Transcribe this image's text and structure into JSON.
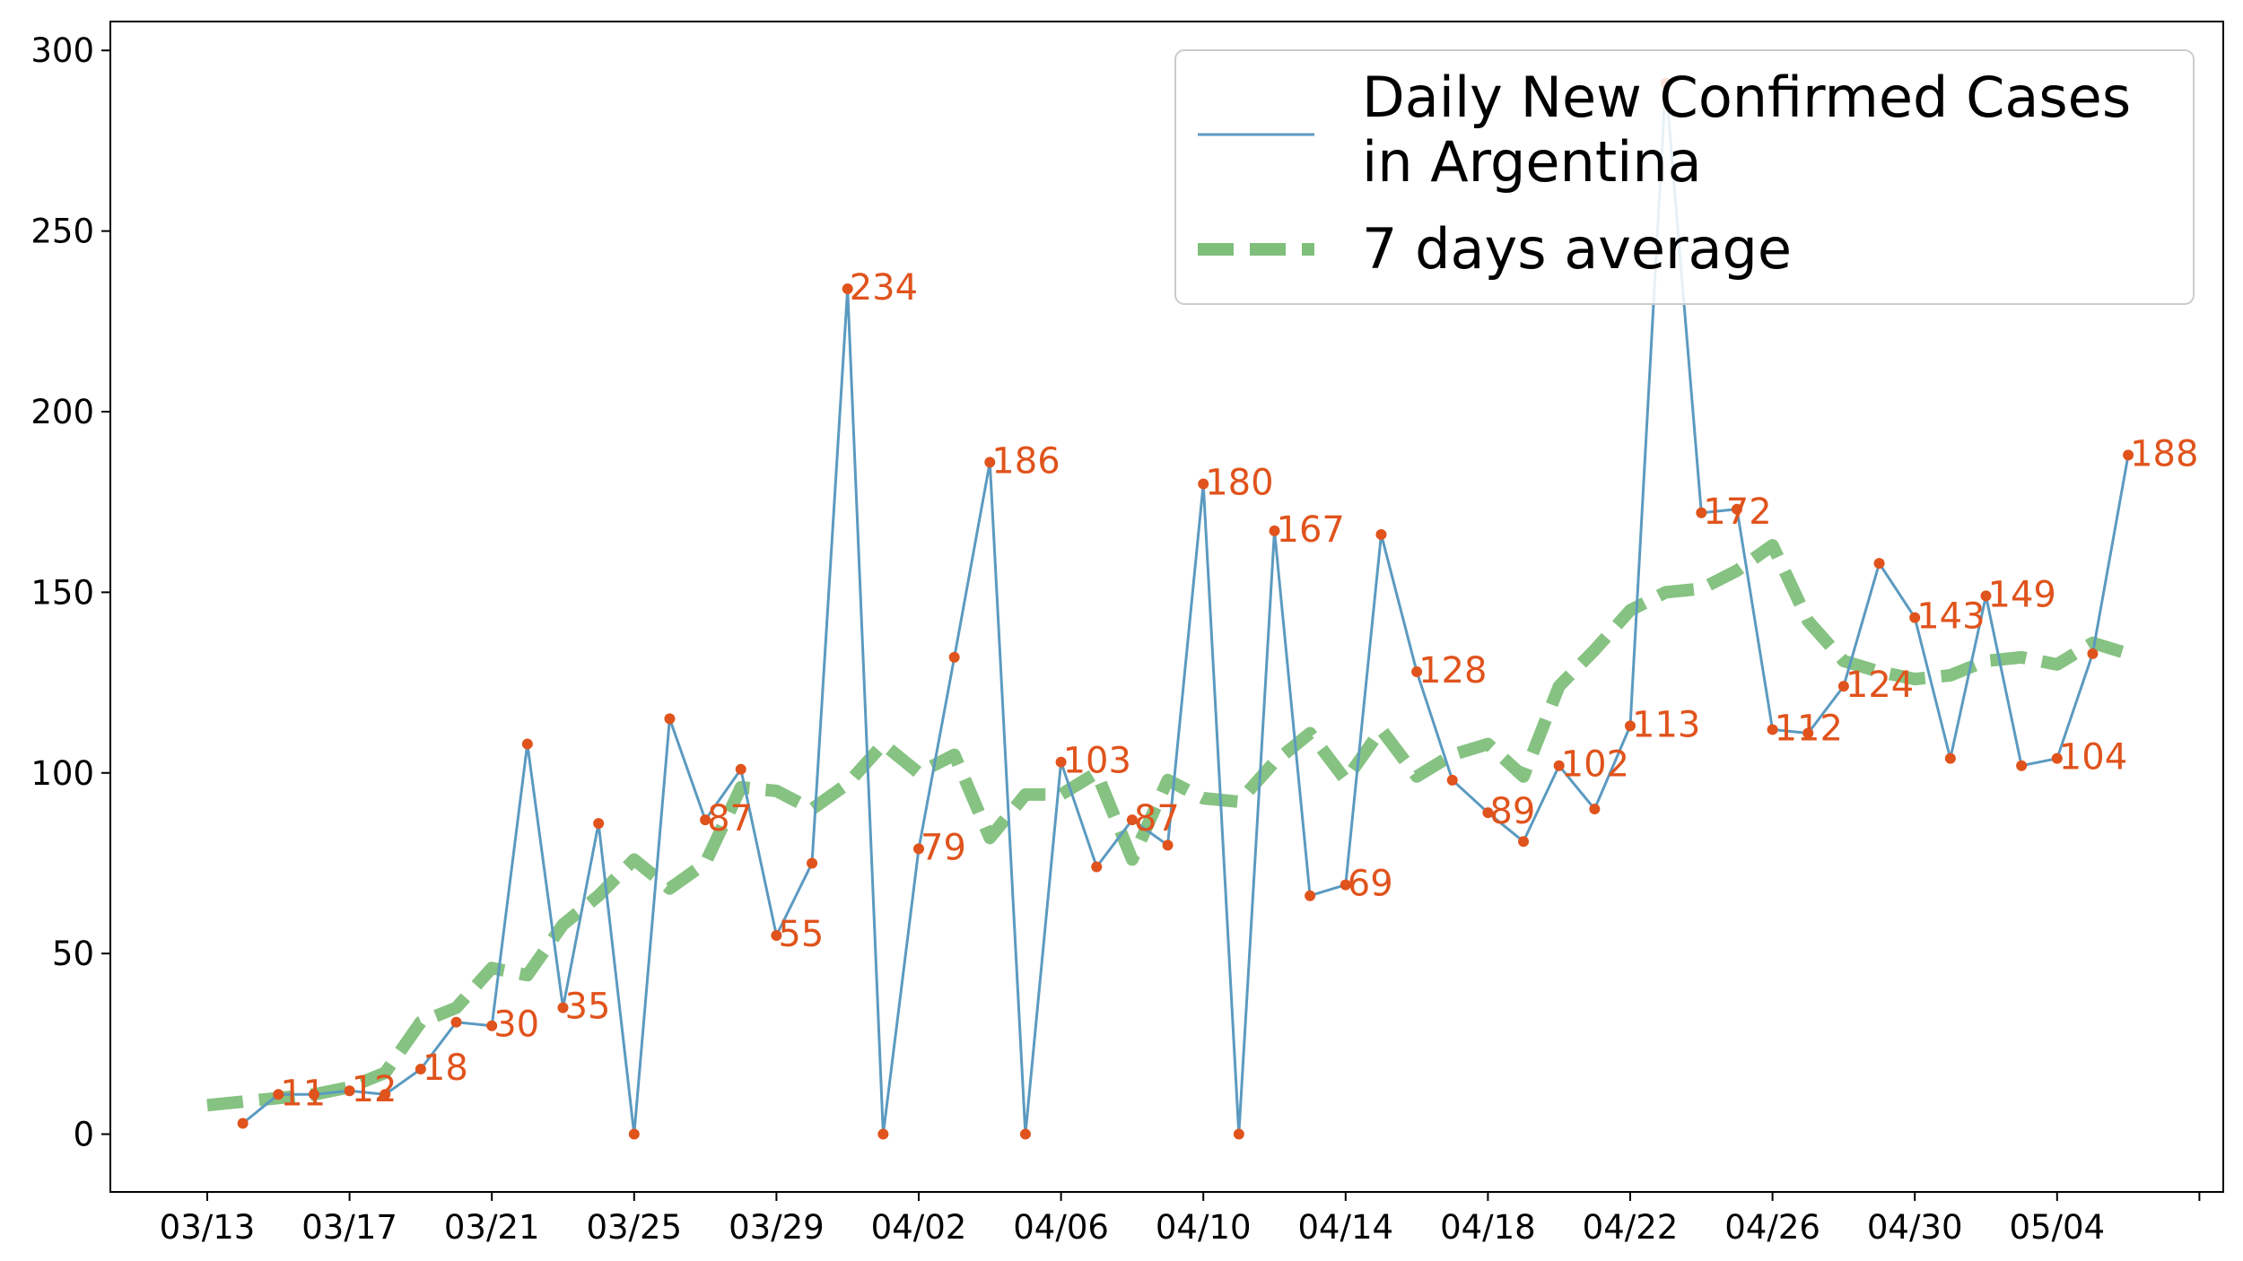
{
  "chart_data": {
    "type": "line",
    "title": "",
    "xlabel": "",
    "ylabel": "",
    "x_start": "2020-03-13",
    "x_tick_labels": [
      "03/13",
      "03/17",
      "03/21",
      "03/25",
      "03/29",
      "04/02",
      "04/06",
      "04/10",
      "04/14",
      "04/18",
      "04/22",
      "04/26",
      "04/30",
      "05/04"
    ],
    "ylim": [
      -16,
      308
    ],
    "y_ticks": [
      0,
      50,
      100,
      150,
      200,
      250,
      300
    ],
    "grid": false,
    "legend_position": "top-right",
    "series": [
      {
        "name": "Daily New Confirmed Cases\n in Argentina",
        "color": "#5b9ac0",
        "style": "solid-line-with-markers",
        "marker_color": "#e0531c",
        "x": [
          "03/14",
          "03/15",
          "03/16",
          "03/17",
          "03/18",
          "03/19",
          "03/20",
          "03/21",
          "03/22",
          "03/23",
          "03/24",
          "03/25",
          "03/26",
          "03/27",
          "03/28",
          "03/29",
          "03/30",
          "03/31",
          "04/01",
          "04/02",
          "04/03",
          "04/04",
          "04/05",
          "04/06",
          "04/07",
          "04/08",
          "04/09",
          "04/10",
          "04/11",
          "04/12",
          "04/13",
          "04/14",
          "04/15",
          "04/16",
          "04/17",
          "04/18",
          "04/19",
          "04/20",
          "04/21",
          "04/22",
          "04/23",
          "04/24",
          "04/25",
          "04/26",
          "04/27",
          "04/28",
          "04/29",
          "04/30",
          "05/01",
          "05/02",
          "05/03",
          "05/04",
          "05/05",
          "05/06"
        ],
        "values": [
          3,
          11,
          11,
          12,
          11,
          18,
          31,
          30,
          108,
          35,
          86,
          0,
          115,
          87,
          101,
          55,
          75,
          234,
          0,
          79,
          132,
          186,
          0,
          103,
          74,
          87,
          80,
          180,
          0,
          167,
          66,
          69,
          166,
          128,
          98,
          89,
          81,
          102,
          90,
          113,
          291,
          172,
          173,
          112,
          111,
          124,
          158,
          143,
          104,
          149,
          102,
          104,
          133,
          188
        ]
      },
      {
        "name": "7 days average",
        "color": "#7fbf7b",
        "style": "dashed",
        "x": [
          "03/13",
          "03/14",
          "03/15",
          "03/16",
          "03/17",
          "03/18",
          "03/19",
          "03/20",
          "03/21",
          "03/22",
          "03/23",
          "03/24",
          "03/25",
          "03/26",
          "03/27",
          "03/28",
          "03/29",
          "03/30",
          "03/31",
          "04/01",
          "04/02",
          "04/03",
          "04/04",
          "04/05",
          "04/06",
          "04/07",
          "04/08",
          "04/09",
          "04/10",
          "04/11",
          "04/12",
          "04/13",
          "04/14",
          "04/15",
          "04/16",
          "04/17",
          "04/18",
          "04/19",
          "04/20",
          "04/21",
          "04/22",
          "04/23",
          "04/24",
          "04/25",
          "04/26",
          "04/27",
          "04/28",
          "04/29",
          "04/30",
          "05/01",
          "05/02",
          "05/03",
          "05/04",
          "05/05",
          "05/06"
        ],
        "values": [
          8,
          9,
          10,
          11,
          13,
          17,
          31,
          35,
          46,
          44,
          58,
          66,
          76,
          68,
          75,
          96,
          95,
          90,
          97,
          108,
          100,
          105,
          82,
          94,
          94,
          100,
          76,
          98,
          93,
          92,
          103,
          111,
          98,
          112,
          99,
          105,
          108,
          99,
          124,
          134,
          145,
          150,
          151,
          156,
          163,
          142,
          131,
          128,
          126,
          127,
          131,
          132,
          130,
          136,
          133
        ]
      }
    ],
    "data_labels": [
      {
        "x": "03/15",
        "text": "11",
        "value": 11
      },
      {
        "x": "03/17",
        "text": "12",
        "value": 12
      },
      {
        "x": "03/19",
        "text": "18",
        "value": 18
      },
      {
        "x": "03/21",
        "text": "30",
        "value": 30
      },
      {
        "x": "03/23",
        "text": "35",
        "value": 35
      },
      {
        "x": "03/27",
        "text": "87",
        "value": 87
      },
      {
        "x": "03/29",
        "text": "55",
        "value": 55
      },
      {
        "x": "03/31",
        "text": "234",
        "value": 234
      },
      {
        "x": "04/02",
        "text": "79",
        "value": 79
      },
      {
        "x": "04/04",
        "text": "186",
        "value": 186
      },
      {
        "x": "04/06",
        "text": "103",
        "value": 103
      },
      {
        "x": "04/08",
        "text": "87",
        "value": 87
      },
      {
        "x": "04/10",
        "text": "180",
        "value": 180
      },
      {
        "x": "04/12",
        "text": "167",
        "value": 167
      },
      {
        "x": "04/14",
        "text": "69",
        "value": 69
      },
      {
        "x": "04/16",
        "text": "128",
        "value": 128
      },
      {
        "x": "04/18",
        "text": "89",
        "value": 89
      },
      {
        "x": "04/20",
        "text": "102",
        "value": 102
      },
      {
        "x": "04/22",
        "text": "113",
        "value": 113
      },
      {
        "x": "04/24",
        "text": "172",
        "value": 172
      },
      {
        "x": "04/26",
        "text": "112",
        "value": 112
      },
      {
        "x": "04/28",
        "text": "124",
        "value": 124
      },
      {
        "x": "04/30",
        "text": "143",
        "value": 143
      },
      {
        "x": "05/02",
        "text": "149",
        "value": 149
      },
      {
        "x": "05/04",
        "text": "104",
        "value": 104
      },
      {
        "x": "05/06",
        "text": "188",
        "value": 188
      }
    ],
    "label_color": "#e0531c"
  }
}
